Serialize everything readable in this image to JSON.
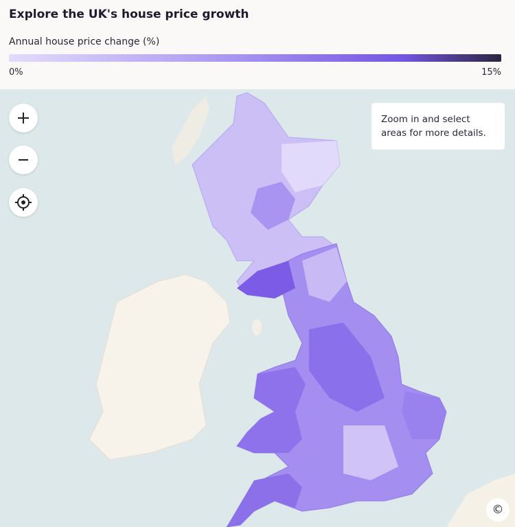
{
  "header": {
    "title": "Explore the UK's house price growth"
  },
  "legend": {
    "title": "Annual house price change (%)",
    "min_label": "0%",
    "max_label": "15%"
  },
  "tooltip": {
    "text": "Zoom in and select areas for more details."
  },
  "attribution": {
    "label": "©"
  }
}
